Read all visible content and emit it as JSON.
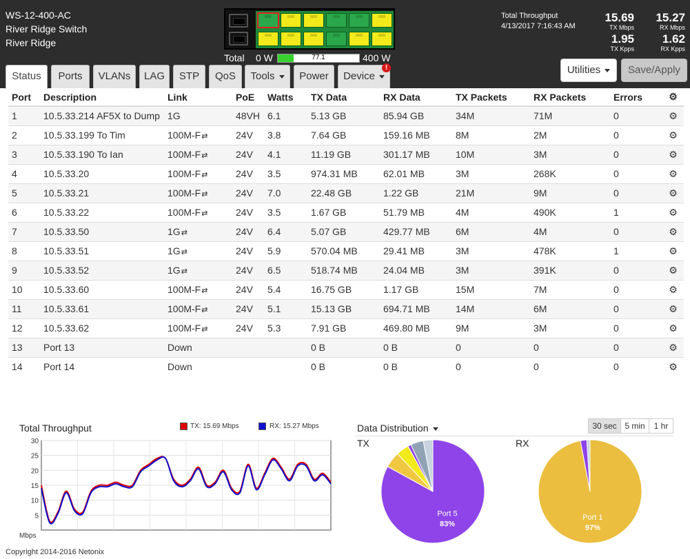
{
  "device": {
    "model": "WS-12-400-AC",
    "name": "River Ridge Switch",
    "location": "River Ridge"
  },
  "power": {
    "total_label": "Total",
    "min_label": "0 W",
    "value_label": "77.1",
    "max_label": "400 W",
    "fraction": 0.193
  },
  "throughput": {
    "title": "Total Throughput",
    "datetime": "4/13/2017 7:16:43 AM",
    "tx_mbps": "15.69",
    "tx_mbps_unit": "TX Mbps",
    "rx_mbps": "15.27",
    "rx_mbps_unit": "RX Mbps",
    "tx_kpps": "1.95",
    "tx_kpps_unit": "TX Kpps",
    "rx_kpps": "1.62",
    "rx_kpps_unit": "RX Kpps"
  },
  "port_panel": {
    "selected_port": 1,
    "top_row_colors": [
      "green",
      "yellow",
      "yellow",
      "green",
      "green",
      "yellow"
    ],
    "bottom_row_colors": [
      "yellow",
      "yellow",
      "yellow",
      "green",
      "yellow",
      "yellow"
    ]
  },
  "tabs": [
    {
      "label": "Status",
      "active": true
    },
    {
      "label": "Ports"
    },
    {
      "label": "VLANs"
    },
    {
      "label": "LAG"
    },
    {
      "label": "STP"
    },
    {
      "label": "QoS"
    },
    {
      "label": "Tools",
      "dropdown": true
    },
    {
      "label": "Power"
    },
    {
      "label": "Device",
      "dropdown": true
    }
  ],
  "alert_badge": "!",
  "buttons": {
    "utilities": "Utilities",
    "save": "Save/Apply"
  },
  "table": {
    "headers": [
      "Port",
      "Description",
      "Link",
      "PoE",
      "Watts",
      "TX Data",
      "RX Data",
      "TX Packets",
      "RX Packets",
      "Errors"
    ],
    "rows": [
      {
        "port": "1",
        "desc": "10.5.33.214 AF5X to Dump",
        "link": "1G",
        "swap": false,
        "poe": "48VH",
        "poe_color": "red",
        "watts": "6.1",
        "tx": "5.13 GB",
        "rx": "85.94 GB",
        "txp": "34M",
        "rxp": "71M",
        "err": "0"
      },
      {
        "port": "2",
        "desc": "10.5.33.199 To Tim",
        "link": "100M-F",
        "swap": true,
        "poe": "24V",
        "poe_color": "green",
        "watts": "3.8",
        "tx": "7.64 GB",
        "rx": "159.16 MB",
        "txp": "8M",
        "rxp": "2M",
        "err": "0"
      },
      {
        "port": "3",
        "desc": "10.5.33.190 To Ian",
        "link": "100M-F",
        "swap": true,
        "poe": "24V",
        "poe_color": "green",
        "watts": "4.1",
        "tx": "11.19 GB",
        "rx": "301.17 MB",
        "txp": "10M",
        "rxp": "3M",
        "err": "0"
      },
      {
        "port": "4",
        "desc": "10.5.33.20",
        "link": "100M-F",
        "swap": true,
        "poe": "24V",
        "poe_color": "green",
        "watts": "3.5",
        "tx": "974.31 MB",
        "rx": "62.01 MB",
        "txp": "3M",
        "rxp": "268K",
        "err": "0"
      },
      {
        "port": "5",
        "desc": "10.5.33.21",
        "link": "100M-F",
        "swap": true,
        "poe": "24V",
        "poe_color": "green",
        "watts": "7.0",
        "tx": "22.48 GB",
        "rx": "1.22 GB",
        "txp": "21M",
        "rxp": "9M",
        "err": "0"
      },
      {
        "port": "6",
        "desc": "10.5.33.22",
        "link": "100M-F",
        "swap": true,
        "poe": "24V",
        "poe_color": "green",
        "watts": "3.5",
        "tx": "1.67 GB",
        "rx": "51.79 MB",
        "txp": "4M",
        "rxp": "490K",
        "err": "1"
      },
      {
        "port": "7",
        "desc": "10.5.33.50",
        "link": "1G",
        "swap": true,
        "poe": "24V",
        "poe_color": "green",
        "watts": "6.4",
        "tx": "5.07 GB",
        "rx": "429.77 MB",
        "txp": "6M",
        "rxp": "4M",
        "err": "0"
      },
      {
        "port": "8",
        "desc": "10.5.33.51",
        "link": "1G",
        "swap": true,
        "poe": "24V",
        "poe_color": "green",
        "watts": "5.9",
        "tx": "570.04 MB",
        "rx": "29.41 MB",
        "txp": "3M",
        "rxp": "478K",
        "err": "1"
      },
      {
        "port": "9",
        "desc": "10.5.33.52",
        "link": "1G",
        "swap": true,
        "poe": "24V",
        "poe_color": "green",
        "watts": "6.5",
        "tx": "518.74 MB",
        "rx": "24.04 MB",
        "txp": "3M",
        "rxp": "391K",
        "err": "0"
      },
      {
        "port": "10",
        "desc": "10.5.33.60",
        "link": "100M-F",
        "swap": true,
        "poe": "24V",
        "poe_color": "green",
        "watts": "5.4",
        "tx": "16.75 GB",
        "rx": "1.17 GB",
        "txp": "15M",
        "rxp": "7M",
        "err": "0"
      },
      {
        "port": "11",
        "desc": "10.5.33.61",
        "link": "100M-F",
        "swap": true,
        "poe": "24V",
        "poe_color": "green",
        "watts": "5.1",
        "tx": "15.13 GB",
        "rx": "694.71 MB",
        "txp": "14M",
        "rxp": "6M",
        "err": "0"
      },
      {
        "port": "12",
        "desc": "10.5.33.62",
        "link": "100M-F",
        "swap": true,
        "poe": "24V",
        "poe_color": "green",
        "watts": "5.3",
        "tx": "7.91 GB",
        "rx": "469.80 MB",
        "txp": "9M",
        "rxp": "3M",
        "err": "0"
      },
      {
        "port": "13",
        "desc": "Port 13",
        "link": "Down",
        "swap": false,
        "poe": "",
        "poe_color": "",
        "watts": "",
        "tx": "0 B",
        "rx": "0 B",
        "txp": "0",
        "rxp": "0",
        "err": "0"
      },
      {
        "port": "14",
        "desc": "Port 14",
        "link": "Down",
        "swap": false,
        "poe": "",
        "poe_color": "",
        "watts": "",
        "tx": "0 B",
        "rx": "0 B",
        "txp": "0",
        "rxp": "0",
        "err": "0"
      }
    ]
  },
  "throughput_chart": {
    "title": "Total Throughput",
    "legend_tx": "TX: 15.69 Mbps",
    "legend_rx": "RX: 15.27 Mbps",
    "tx_color": "#e00000",
    "rx_color": "#1010d0"
  },
  "distribution": {
    "title": "Data Distribution",
    "tx_label": "TX",
    "rx_label": "RX",
    "ranges": [
      "30 sec",
      "5 min",
      "1 hr"
    ],
    "active_range": 0
  },
  "chart_data": [
    {
      "type": "line",
      "title": "Total Throughput",
      "ylabel": "Mbps",
      "ylim": [
        0,
        30
      ],
      "yticks": [
        "30",
        "25",
        "20",
        "15",
        "10",
        "5"
      ],
      "series": [
        {
          "name": "TX: 15.69 Mbps",
          "color": "#e00000",
          "values": [
            15,
            3,
            6,
            13,
            7,
            6,
            13,
            15,
            15,
            16,
            15,
            15,
            20,
            22,
            24,
            24,
            17,
            15,
            17,
            21,
            15,
            16,
            20,
            14,
            13,
            22,
            14,
            19,
            24,
            21,
            17,
            22,
            22,
            17,
            19,
            16
          ]
        },
        {
          "name": "RX: 15.27 Mbps",
          "color": "#1010d0",
          "values": [
            14,
            2.5,
            5.5,
            12.5,
            6.5,
            5.5,
            12.5,
            14.5,
            14.5,
            15.5,
            14.5,
            14.5,
            19.5,
            21.5,
            23.5,
            24,
            16.5,
            14.5,
            16.5,
            20.5,
            14.5,
            15.5,
            19.5,
            13.5,
            12.5,
            21.5,
            13.5,
            18.5,
            23.5,
            20.5,
            16.5,
            21.5,
            21.5,
            16.5,
            18.5,
            15.5
          ]
        }
      ]
    },
    {
      "type": "pie",
      "title": "TX",
      "slices": [
        {
          "label": "Port 5",
          "value": 83,
          "color": "#8e44e8",
          "labelled": true
        },
        {
          "label": "",
          "value": 5,
          "color": "#f0c840",
          "labelled": false
        },
        {
          "label": "",
          "value": 4,
          "color": "#f2ea1a",
          "labelled": false
        },
        {
          "label": "",
          "value": 1,
          "color": "#8e44e8",
          "labelled": false
        },
        {
          "label": "",
          "value": 4,
          "color": "#8fa3b5",
          "labelled": false
        },
        {
          "label": "",
          "value": 3,
          "color": "#c7d3de",
          "labelled": false
        }
      ],
      "label_pct": "83%"
    },
    {
      "type": "pie",
      "title": "RX",
      "slices": [
        {
          "label": "Port 1",
          "value": 97,
          "color": "#ebbe3f",
          "labelled": true
        },
        {
          "label": "",
          "value": 2,
          "color": "#8e44e8",
          "labelled": false
        },
        {
          "label": "",
          "value": 1,
          "color": "#c7d3de",
          "labelled": false
        }
      ],
      "label_pct": "97%"
    }
  ],
  "footer": {
    "copyright": "Copyright 2014-2016 Netonix"
  }
}
